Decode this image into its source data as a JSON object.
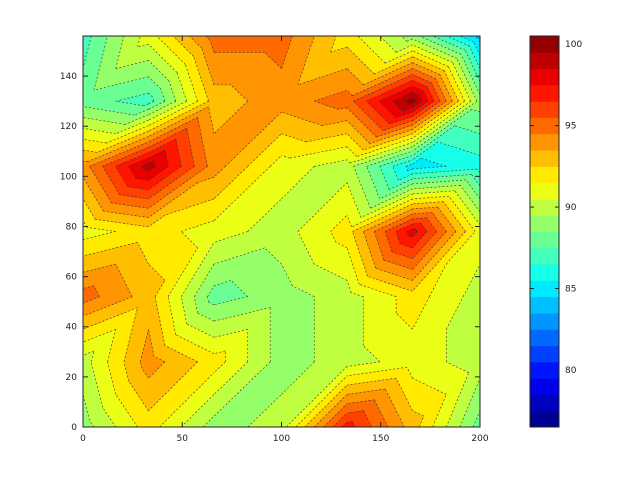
{
  "chart_data": {
    "type": "contour_filled",
    "title": "",
    "xlabel": "",
    "ylabel": "",
    "xlim": [
      0,
      200
    ],
    "ylim": [
      0,
      156
    ],
    "x_ticks": [
      0,
      50,
      100,
      150,
      200
    ],
    "y_ticks": [
      0,
      20,
      40,
      60,
      80,
      100,
      120,
      140
    ],
    "colorbar": {
      "range": [
        76.5,
        100.5
      ],
      "ticks": [
        80,
        85,
        90,
        95,
        100
      ],
      "levels": [
        76.5,
        77.5,
        78.5,
        79.5,
        80.5,
        81.5,
        82.5,
        83.5,
        84.5,
        85.5,
        86.5,
        87.5,
        88.5,
        89.5,
        90.5,
        91.5,
        92.5,
        93.5,
        94.5,
        95.5,
        96.5,
        97.5,
        98.5,
        99.5,
        100.5
      ],
      "colormap": "jet"
    },
    "grid": {
      "x": [
        0,
        33,
        66,
        100,
        133,
        166,
        200
      ],
      "y": [
        0,
        26,
        52,
        78,
        104,
        130,
        156
      ],
      "z": [
        [
          89,
          92,
          89,
          90,
          97,
          93,
          88
        ],
        [
          90,
          94,
          92,
          89,
          90,
          91,
          90
        ],
        [
          95,
          93,
          88,
          89,
          90,
          92,
          90
        ],
        [
          91,
          92,
          91,
          90,
          92,
          98,
          91
        ],
        [
          94,
          99,
          94,
          91,
          90,
          85,
          86
        ],
        [
          88,
          87,
          93,
          94,
          95,
          100,
          89
        ],
        [
          87,
          91,
          95,
          95,
          92,
          89,
          84
        ]
      ]
    }
  }
}
